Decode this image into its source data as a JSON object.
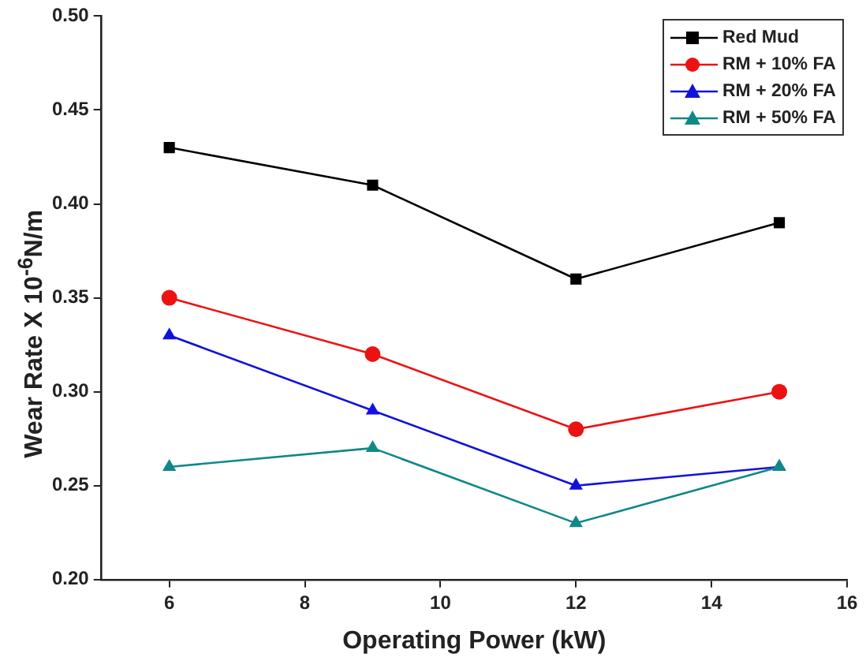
{
  "chart_data": {
    "type": "line",
    "xlabel": "Operating Power (kW)",
    "ylabel": "Wear Rate X 10$^{-6}$N/m",
    "x": [
      6,
      9,
      12,
      15
    ],
    "series": [
      {
        "name": "Red Mud",
        "color": "#000000",
        "marker": "square",
        "values": [
          0.43,
          0.41,
          0.36,
          0.39
        ]
      },
      {
        "name": "RM + 10% FA",
        "color": "#ee1111",
        "marker": "circle",
        "values": [
          0.35,
          0.32,
          0.28,
          0.3
        ]
      },
      {
        "name": "RM + 20% FA",
        "color": "#1111dd",
        "marker": "triangle",
        "values": [
          0.33,
          0.29,
          0.25,
          0.26
        ]
      },
      {
        "name": "RM + 50% FA",
        "color": "#118888",
        "marker": "triangle",
        "values": [
          0.26,
          0.27,
          0.23,
          0.26
        ]
      }
    ],
    "xlim": [
      5,
      16
    ],
    "xticks": [
      6,
      8,
      10,
      12,
      14,
      16
    ],
    "ylim": [
      0.2,
      0.5
    ],
    "yticks": [
      {
        "value": 0.2,
        "label": "0.20"
      },
      {
        "value": 0.25,
        "label": "0.25"
      },
      {
        "value": 0.3,
        "label": "0.30"
      },
      {
        "value": 0.35,
        "label": "0.35"
      },
      {
        "value": 0.4,
        "label": "0.40"
      },
      {
        "value": 0.45,
        "label": "0.45"
      },
      {
        "value": 0.5,
        "label": "0.50"
      }
    ],
    "grid": false,
    "legend": "top right",
    "line_style": "solid"
  }
}
